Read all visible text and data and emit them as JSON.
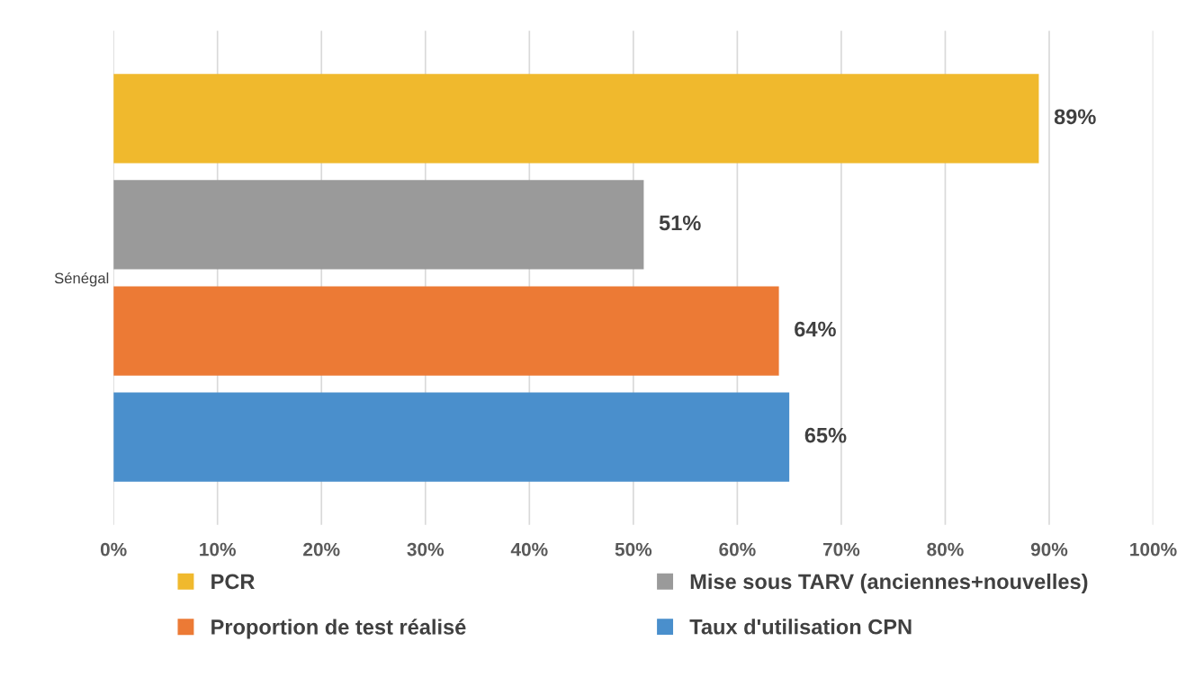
{
  "chart_data": {
    "type": "bar",
    "orientation": "horizontal",
    "categories": [
      "Sénégal"
    ],
    "series": [
      {
        "name": "PCR",
        "color": "#f0b92d",
        "values": [
          89
        ],
        "value_labels": [
          "89%"
        ]
      },
      {
        "name": "Mise sous TARV (anciennes+nouvelles)",
        "color": "#9a9a9a",
        "values": [
          51
        ],
        "value_labels": [
          "51%"
        ]
      },
      {
        "name": "Proportion de test réalisé",
        "color": "#ec7a35",
        "values": [
          64
        ],
        "value_labels": [
          "64%"
        ]
      },
      {
        "name": "Taux d'utilisation CPN",
        "color": "#4a8fcc",
        "values": [
          65
        ],
        "value_labels": [
          "65%"
        ]
      }
    ],
    "xlim": [
      0,
      100
    ],
    "xticks": [
      {
        "value": 0,
        "label": "0%"
      },
      {
        "value": 10,
        "label": "10%"
      },
      {
        "value": 20,
        "label": "20%"
      },
      {
        "value": 30,
        "label": "30%"
      },
      {
        "value": 40,
        "label": "40%"
      },
      {
        "value": 50,
        "label": "50%"
      },
      {
        "value": 60,
        "label": "60%"
      },
      {
        "value": 70,
        "label": "70%"
      },
      {
        "value": 80,
        "label": "80%"
      },
      {
        "value": 90,
        "label": "90%"
      },
      {
        "value": 100,
        "label": "100%"
      }
    ],
    "grid": "x",
    "legend": "bottom"
  }
}
